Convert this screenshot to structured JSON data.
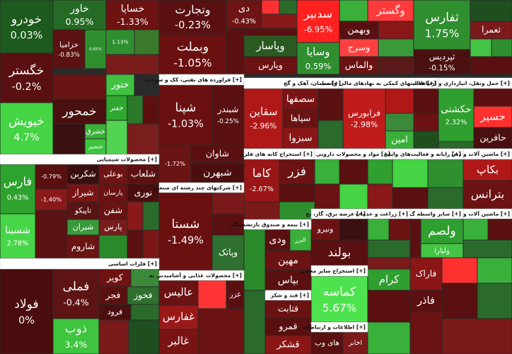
{
  "headers": [
    {
      "title": "محصولات شیمیایی [+]"
    },
    {
      "title": "فلزات اساسی [+]"
    },
    {
      "title": "فراورده های نفتی، کک و سوخت [+]"
    },
    {
      "title": "سیمان، آهک و گچ [+]"
    },
    {
      "title": "فعالیتهای کمکی به نهادهای مالی واسط [+]"
    },
    {
      "title": "حمل ونقل، انبارداری و ارتباطات [+]"
    },
    {
      "title": "استخراج کانه های فلزی [+]"
    },
    {
      "title": "مواد و محصولات دارویی [+]"
    },
    {
      "title": "رایانه و فعالیت‌های وابس [+]"
    },
    {
      "title": "ماشین آلات و دس [+]"
    },
    {
      "title": "شرکتهای چند رشته ای صنعتی [+]"
    },
    {
      "title": "بیمه و صندوق بازنشستگی [+]"
    },
    {
      "title": "عرضه برق، گاز، بخ [+]"
    },
    {
      "title": "زراعت و خدمات [+]"
    },
    {
      "title": "سایر واسطه گ [+]"
    },
    {
      "title": "ماشین آلات و [+]"
    },
    {
      "title": "استخراج سایر معادن [+]"
    },
    {
      "title": "محصولات غذایی و آشامیدنی به [+]"
    },
    {
      "title": "قند و شکر [+]"
    },
    {
      "title": "اطلاعات و ارتباطات [+]"
    }
  ],
  "tiles": [
    {
      "name": "خودرو",
      "change": "0.03%",
      "color": "#1d5a1d"
    },
    {
      "name": "خاور",
      "change": "0.95%",
      "color": "#256b25"
    },
    {
      "name": "خساپا",
      "change": "-1.33%",
      "color": "#6e1212"
    },
    {
      "name": "خزامیا",
      "change": "-0.83%",
      "color": "#5c1212"
    },
    {
      "change": "0.65%",
      "color": "#2f8f2f"
    },
    {
      "change": "1.13%",
      "color": "#2f8f2f"
    },
    {
      "color": "#3a7a2a"
    },
    {
      "name": "خگستر",
      "change": "-0.2%",
      "color": "#5a1010"
    },
    {
      "color": "#7a1c1c"
    },
    {
      "name": "خیویش",
      "change": "4.7%",
      "color": "#44d444"
    },
    {
      "name": "ختور",
      "color": "#41c141"
    },
    {
      "name": "خمحور",
      "color": "#4a1010"
    },
    {
      "name": "خفنر",
      "color": "#2ea82e"
    },
    {
      "color": "#6b1414"
    },
    {
      "color": "#3a1010"
    },
    {
      "name": "خشرق",
      "color": "#3bb23b"
    },
    {
      "name": "خنصیر",
      "color": "#3ec43e"
    },
    {
      "color": "#2a7a2a"
    },
    {
      "color": "#5e1010"
    },
    {
      "color": "#52d452"
    },
    {
      "color": "#7a1e1e"
    },
    {
      "name": "فارس",
      "change": "0.43%",
      "color": "#2ea22e"
    },
    {
      "name": "شسینا",
      "change": "2.78%",
      "color": "#47d647"
    },
    {
      "change": "-0.79%",
      "color": "#5a1010"
    },
    {
      "name": "شکربن",
      "color": "#3a0e0e"
    },
    {
      "name": "بوعلی",
      "color": "#6e1414"
    },
    {
      "name": "شلعاب",
      "color": "#5c1010"
    },
    {
      "change": "-1.40%",
      "color": "#8a1a1a"
    },
    {
      "name": "شیراز",
      "color": "#7a1414"
    },
    {
      "name": "تاپیکو",
      "color": "#5a1414"
    },
    {
      "name": "پارسان",
      "color": "#6b1212"
    },
    {
      "name": "نوری",
      "color": "#4a0e0e"
    },
    {
      "name": "شفن",
      "color": "#6a1212"
    },
    {
      "name": "شیران",
      "color": "#3a9a3a"
    },
    {
      "name": "پارس",
      "color": "#7a1c1c"
    },
    {
      "name": "شاروم",
      "color": "#6b1414"
    },
    {
      "color": "#2a8a2a"
    },
    {
      "color": "#5a1212"
    },
    {
      "color": "#8a1a1a"
    },
    {
      "color": "#2a6a2a"
    },
    {
      "color": "#5a1010"
    },
    {
      "color": "#7a1616"
    },
    {
      "name": "فولاد",
      "change": "0%",
      "color": "#4a0c0c"
    },
    {
      "name": "فملی",
      "change": "-0.4%",
      "color": "#5e1414"
    },
    {
      "name": "ذوب",
      "change": "3.4%",
      "color": "#3ec43e"
    },
    {
      "name": "کویر",
      "color": "#6e1212"
    },
    {
      "name": "فجر",
      "color": "#5a1010"
    },
    {
      "name": "فخوز",
      "color": "#2f6f2f"
    },
    {
      "name": "فرود",
      "color": "#4a1010"
    },
    {
      "color": "#2a6a2a"
    },
    {
      "color": "#7a1a1a"
    },
    {
      "color": "#1f4f1f"
    },
    {
      "color": "#3a8a3a"
    },
    {
      "name": "وتجارت",
      "change": "-0.23%",
      "color": "#5a1010"
    },
    {
      "name": "دی",
      "change": "-0.43%",
      "color": "#6e1414"
    },
    {
      "name": "وبملت",
      "change": "-1.05%",
      "color": "#6b1010"
    },
    {
      "color": "#5a1010"
    },
    {
      "color": "#5a1010"
    },
    {
      "name": "وپاسار",
      "color": "#2a5a20"
    },
    {
      "name": "وپارس",
      "color": "#6b1212"
    },
    {
      "color": "#ff3030"
    },
    {
      "color": "#2a6a2a"
    },
    {
      "color": "#8a1a1a"
    },
    {
      "name": "سدبیر",
      "change": "-6.95%",
      "color": "#ff2020"
    },
    {
      "name": "وسایا",
      "change": "0.59%",
      "color": "#2f8f2f"
    },
    {
      "color": "#3ab03a"
    },
    {
      "name": "وگستر",
      "color": "#ff3a3a"
    },
    {
      "name": "وبهمن",
      "color": "#5a1010"
    },
    {
      "color": "#8a1818"
    },
    {
      "name": "وسرج",
      "color": "#ff4040"
    },
    {
      "color": "#3a9a3a"
    },
    {
      "name": "والماس",
      "color": "#6b1212"
    },
    {
      "color": "#5a1a1a"
    },
    {
      "name": "ثفارس",
      "change": "1.75%",
      "color": "#2f8f2f"
    },
    {
      "name": "ثپردیس",
      "change": "-0.15%",
      "color": "#4a1010"
    },
    {
      "color": "#1f4f1f"
    },
    {
      "name": "ثعمرا",
      "color": "#7a1a1a"
    },
    {
      "color": "#44c444"
    },
    {
      "color": "#2f8f2f"
    },
    {
      "color": "#5a1010"
    },
    {
      "name": "شپنا",
      "change": "-1.03%",
      "color": "#6b1010"
    },
    {
      "name": "شبندر",
      "change": "-0.25%",
      "color": "#5a1010"
    },
    {
      "change": "-1.72%",
      "color": "#6b1414"
    },
    {
      "name": "شاوان",
      "color": "#5a1010"
    },
    {
      "name": "شبهرن",
      "color": "#4a0e0e"
    },
    {
      "name": "سقاین",
      "change": "-2.96%",
      "color": "#b01818"
    },
    {
      "name": "سصفها",
      "color": "#7a1414"
    },
    {
      "name": "سپاها",
      "color": "#6b1212"
    },
    {
      "name": "سبزوا",
      "color": "#8a1616"
    },
    {
      "color": "#5a1010"
    },
    {
      "color": "#2a6a2a"
    },
    {
      "name": "فرابورس",
      "change": "-2.98%",
      "color": "#c01c1c"
    },
    {
      "color": "#b01818"
    },
    {
      "color": "#5a1010"
    },
    {
      "color": "#3a8a3a"
    },
    {
      "color": "#6b1212"
    },
    {
      "name": "امین",
      "color": "#3ab03a"
    },
    {
      "color": "#1f4f1f"
    },
    {
      "name": "حکشتی",
      "change": "2.32%",
      "color": "#2f9f2f"
    },
    {
      "color": "#5a1010"
    },
    {
      "name": "حسیر",
      "color": "#ff3030"
    },
    {
      "name": "حافرین",
      "color": "#4a1010"
    },
    {
      "color": "#2a6a2a"
    },
    {
      "name": "کاما",
      "change": "-2.67%",
      "color": "#9a1616"
    },
    {
      "name": "فزر",
      "color": "#6b1212"
    },
    {
      "color": "#5a1010"
    },
    {
      "color": "#7a1a1a"
    },
    {
      "color": "#2f8f2f"
    },
    {
      "color": "#3ab03a"
    },
    {
      "color": "#5a1010"
    },
    {
      "color": "#2f9f2f"
    },
    {
      "color": "#6b1212"
    },
    {
      "color": "#44d444"
    },
    {
      "color": "#8a1818"
    },
    {
      "color": "#44d444"
    },
    {
      "color": "#2f8f2f"
    },
    {
      "color": "#5a1010"
    },
    {
      "color": "#2a6a2a"
    },
    {
      "name": "بکاپ",
      "color": "#b01818"
    },
    {
      "name": "بترانس",
      "color": "#6b1212"
    },
    {
      "name": "شستا",
      "change": "-1.49%",
      "color": "#6b1010"
    },
    {
      "color": "#7a1a1a"
    },
    {
      "color": "#5a1010"
    },
    {
      "name": "وپاتک",
      "color": "#2f6f2f"
    },
    {
      "color": "#2a8a2a"
    },
    {
      "name": "ودی",
      "color": "#5a1010"
    },
    {
      "name": "البرز",
      "color": "#3ab03a"
    },
    {
      "name": "مهین",
      "color": "#6b1212"
    },
    {
      "name": "بپاس",
      "color": "#5a1010"
    },
    {
      "name": "ونیرو",
      "color": "#6b1212"
    },
    {
      "color": "#3a1010"
    },
    {
      "name": "بولند",
      "color": "#5a1010"
    },
    {
      "color": "#3ab03a"
    },
    {
      "color": "#6b1212"
    },
    {
      "color": "#2a6a2a"
    },
    {
      "color": "#5a1010"
    },
    {
      "name": "ولصم",
      "color": "#2f9f2f"
    },
    {
      "name": "ولپارا",
      "color": "#44c444"
    },
    {
      "color": "#3ab03a"
    },
    {
      "color": "#5a1010"
    },
    {
      "color": "#2a6a2a"
    },
    {
      "name": "کماسه",
      "change": "5.67%",
      "color": "#4ee34e"
    },
    {
      "color": "#7a1a1a"
    },
    {
      "name": "کرام",
      "color": "#2f9f2f"
    },
    {
      "color": "#5a1010"
    },
    {
      "name": "فاراک",
      "color": "#8a1616"
    },
    {
      "name": "فاذر",
      "color": "#5a1010"
    },
    {
      "color": "#ff3030"
    },
    {
      "color": "#3ab03a"
    },
    {
      "color": "#5a1010"
    },
    {
      "color": "#2a6a2a"
    },
    {
      "color": "#7a1a1a"
    },
    {
      "color": "#6b1212"
    },
    {
      "color": "#3ab03a"
    },
    {
      "name": "عالیس",
      "color": "#6b1212"
    },
    {
      "name": "غفارس",
      "color": "#9a1818"
    },
    {
      "name": "غالبر",
      "color": "#7a1414"
    },
    {
      "color": "#ff3535"
    },
    {
      "name": "غزر",
      "color": "#5a1010"
    },
    {
      "color": "#6b1212"
    },
    {
      "color": "#2a6a2a"
    },
    {
      "name": "قثابت",
      "color": "#6b1212"
    },
    {
      "name": "قمرو",
      "color": "#5a1010"
    },
    {
      "name": "قشکر",
      "color": "#8a1616"
    },
    {
      "name": "های وب",
      "color": "#5a1010"
    },
    {
      "name": "اخابر",
      "color": "#7a1a1a"
    }
  ]
}
